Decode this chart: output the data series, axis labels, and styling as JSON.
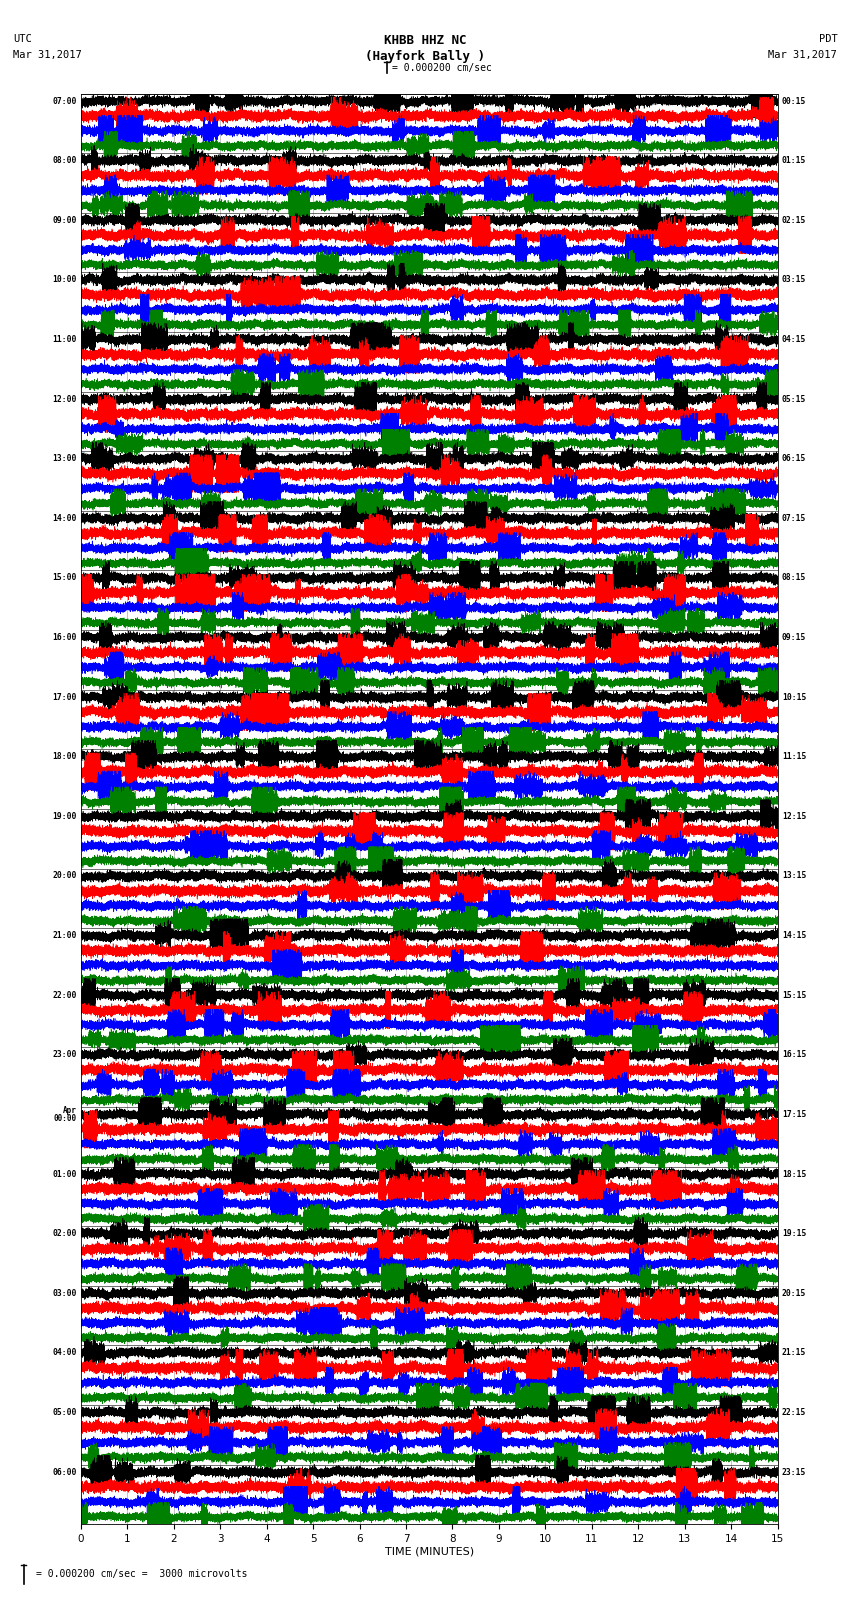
{
  "title_line1": "KHBB HHZ NC",
  "title_line2": "(Hayfork Bally )",
  "scale_label": "= 0.000200 cm/sec",
  "left_label_top": "UTC",
  "left_label_date": "Mar 31,2017",
  "right_label_top": "PDT",
  "right_label_date": "Mar 31,2017",
  "bottom_label": "TIME (MINUTES)",
  "scale_note_left": "= 0.000200 cm/sec =",
  "scale_note_right": "  3000 microvolts",
  "utc_times": [
    "07:00",
    "08:00",
    "09:00",
    "10:00",
    "11:00",
    "12:00",
    "13:00",
    "14:00",
    "15:00",
    "16:00",
    "17:00",
    "18:00",
    "19:00",
    "20:00",
    "21:00",
    "22:00",
    "23:00",
    "Apr\n00:00",
    "01:00",
    "02:00",
    "03:00",
    "04:00",
    "05:00",
    "06:00"
  ],
  "pdt_times": [
    "00:15",
    "01:15",
    "02:15",
    "03:15",
    "04:15",
    "05:15",
    "06:15",
    "07:15",
    "08:15",
    "09:15",
    "10:15",
    "11:15",
    "12:15",
    "13:15",
    "14:15",
    "15:15",
    "16:15",
    "17:15",
    "18:15",
    "19:15",
    "20:15",
    "21:15",
    "22:15",
    "23:15"
  ],
  "n_rows": 24,
  "traces_per_row": 4,
  "n_minutes": 15,
  "colors": [
    "black",
    "red",
    "blue",
    "green"
  ],
  "fig_width": 8.5,
  "fig_height": 16.13,
  "bg_color": "white",
  "grid_color": "#aaaaaa",
  "sample_rate": 40
}
